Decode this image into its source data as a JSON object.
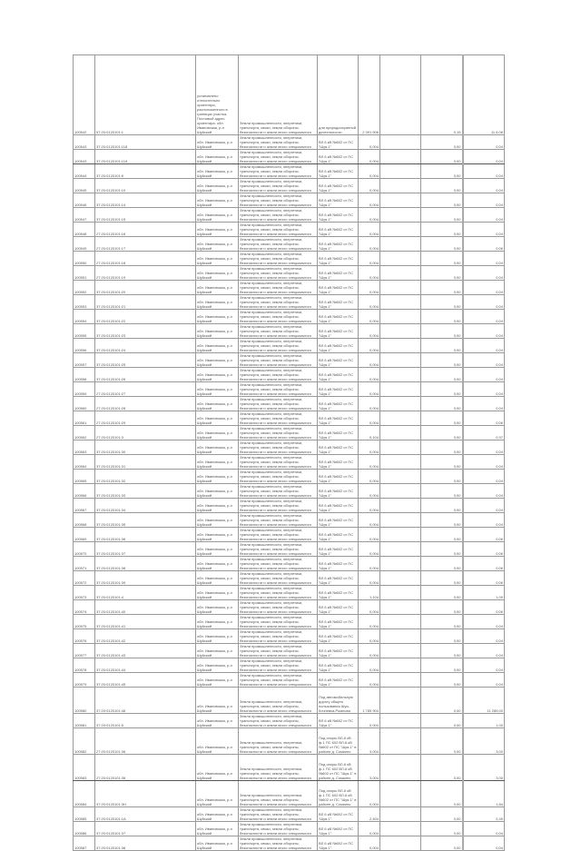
{
  "table": {
    "address": "обл. Ивановская, р-н Шуйский",
    "first_row_address": "установлено относительно ориентира, расположенного в границах участка. Почтовый адрес ориентира: обл. Ивановская, р-н Шуйский",
    "category": "Земли промышленности, энергетики, транспорта, связи, земли обороны, безопасности и земли иного специального назначения",
    "purpose_line": "ВЛ 6 кВ №602 от ПС \"Шуя-1\"",
    "purpose_nature": "для природоохранной деятельности",
    "purpose_road_a": "Под автомобильную дорогу общего пользования Шуя-Кочневка-Ржанова",
    "purpose_road_b": "Под опоры ВЛ-6 кВ ф.1 ПС 602 ВЛ-6 кВ №602 от ПС \"Шуя-1\" в районе д. Сомкино",
    "rows": [
      {
        "n": "100542",
        "cad": "57:20:0120101:1",
        "p": "nature",
        "a": "2 391 906",
        "b": "0,15",
        "c": "11 6,08",
        "first": true
      },
      {
        "n": "100543",
        "cad": "37:20:0120101:118",
        "p": "line",
        "a": "0,004",
        "b": "0,00",
        "c": "0,04"
      },
      {
        "n": "100543",
        "cad": "37:20:0120101:119",
        "p": "line",
        "a": "0,004",
        "b": "0,00",
        "c": "0,04",
        "thick": true
      },
      {
        "n": "100544",
        "cad": "37:20:0120101:9",
        "p": "line",
        "a": "0,004",
        "b": "0,00",
        "c": "0,04"
      },
      {
        "n": "100545",
        "cad": "37:20:0120101:10",
        "p": "line",
        "a": "0,004",
        "b": "0,00",
        "c": "0,04"
      },
      {
        "n": "100546",
        "cad": "37:20:0120101:14",
        "p": "line",
        "a": "0,004",
        "b": "0,00",
        "c": "0,04"
      },
      {
        "n": "100547",
        "cad": "37:20:0120101:15",
        "p": "line",
        "a": "0,004",
        "b": "0,00",
        "c": "0,04"
      },
      {
        "n": "100548",
        "cad": "27:20:0120101:16",
        "p": "line",
        "a": "0,004",
        "b": "0,00",
        "c": "0,04"
      },
      {
        "n": "100549",
        "cad": "27:20:0120101:17",
        "p": "line",
        "a": "0,004",
        "b": "0,00",
        "c": "0,06"
      },
      {
        "n": "100550",
        "cad": "27:20:0120101:18",
        "p": "line",
        "a": "0,004",
        "b": "0,00",
        "c": "0,04"
      },
      {
        "n": "100551",
        "cad": "27:20:0120101:19",
        "p": "line",
        "a": "0,004",
        "b": "0,00",
        "c": "0,04"
      },
      {
        "n": "100552",
        "cad": "37:20:0120101:20",
        "p": "line",
        "a": "0,004",
        "b": "0,00",
        "c": "0,04"
      },
      {
        "n": "100553",
        "cad": "37:20:0120101:21",
        "p": "line",
        "a": "0,004",
        "b": "0,00",
        "c": "0,04"
      },
      {
        "n": "100554",
        "cad": "37:20:0120101:22",
        "p": "line",
        "a": "0,004",
        "b": "0,00",
        "c": "0,04"
      },
      {
        "n": "100555",
        "cad": "37:20:0120101:23",
        "p": "line",
        "a": "0,004",
        "b": "0,00",
        "c": "0,04"
      },
      {
        "n": "100556",
        "cad": "37:20:0120101:24",
        "p": "line",
        "a": "0,004",
        "b": "0,00",
        "c": "0,04"
      },
      {
        "n": "100557",
        "cad": "37:20:0120101:25",
        "p": "line",
        "a": "0,004",
        "b": "0,00",
        "c": "0,04"
      },
      {
        "n": "100558",
        "cad": "37:20:0120101:26",
        "p": "line",
        "a": "0,004",
        "b": "0,00",
        "c": "0,04"
      },
      {
        "n": "100559",
        "cad": "27:20:0120101:27",
        "p": "line",
        "a": "0,004",
        "b": "0,00",
        "c": "0,04"
      },
      {
        "n": "100560",
        "cad": "27:20:0120101:28",
        "p": "line",
        "a": "0,004",
        "b": "0,00",
        "c": "0,04"
      },
      {
        "n": "100561",
        "cad": "27:20:0120101:29",
        "p": "line",
        "a": "0,004",
        "b": "0,00",
        "c": "0,06"
      },
      {
        "n": "100562",
        "cad": "27:20:0120101:3",
        "p": "line",
        "a": "0,104",
        "b": "0,00",
        "c": "0,37"
      },
      {
        "n": "100563",
        "cad": "37:20:0120101:30",
        "p": "line",
        "a": "0,004",
        "b": "0,00",
        "c": "0,04"
      },
      {
        "n": "100564",
        "cad": "37:20:0120101:31",
        "p": "line",
        "a": "0,004",
        "b": "0,00",
        "c": "0,04"
      },
      {
        "n": "100565",
        "cad": "37:20:0120101:32",
        "p": "line",
        "a": "0,004",
        "b": "0,00",
        "c": "0,04"
      },
      {
        "n": "100566",
        "cad": "37:20:0120101:33",
        "p": "line",
        "a": "0,004",
        "b": "0,00",
        "c": "0,04"
      },
      {
        "n": "100567",
        "cad": "37:20:0120101:34",
        "p": "line",
        "a": "0,004",
        "b": "0,00",
        "c": "0,04"
      },
      {
        "n": "100568",
        "cad": "37:20:0120101:35",
        "p": "line",
        "a": "0,004",
        "b": "0,00",
        "c": "0,04"
      },
      {
        "n": "100569",
        "cad": "37:20:0120101:36",
        "p": "line",
        "a": "0,004",
        "b": "0,00",
        "c": "0,06"
      },
      {
        "n": "100570",
        "cad": "37:20:0120101:37",
        "p": "line",
        "a": "0,004",
        "b": "0,00",
        "c": "0,06"
      },
      {
        "n": "100571",
        "cad": "37:20:0120101:38",
        "p": "line",
        "a": "0,004",
        "b": "0,00",
        "c": "0,06"
      },
      {
        "n": "100572",
        "cad": "37:20:0120101:39",
        "p": "line",
        "a": "0,004",
        "b": "0,00",
        "c": "0,06"
      },
      {
        "n": "100573",
        "cad": "37:20:0120101:4",
        "p": "line",
        "a": "1,104",
        "b": "0,00",
        "c": "1,09"
      },
      {
        "n": "100574",
        "cad": "37:20:0120101:40",
        "p": "line",
        "a": "0,004",
        "b": "0,00",
        "c": "0,06"
      },
      {
        "n": "100575",
        "cad": "37:20:0120101:41",
        "p": "line",
        "a": "0,004",
        "b": "0,00",
        "c": "0,04"
      },
      {
        "n": "100576",
        "cad": "37:20:0120101:42",
        "p": "line",
        "a": "0,004",
        "b": "0,00",
        "c": "0,04"
      },
      {
        "n": "100577",
        "cad": "37:20:0120101:43",
        "p": "line",
        "a": "0,004",
        "b": "0,00",
        "c": "0,04"
      },
      {
        "n": "100578",
        "cad": "37:20:0120101:44",
        "p": "line",
        "a": "0,004",
        "b": "0,00",
        "c": "0,04"
      },
      {
        "n": "100579",
        "cad": "37:20:0120101:45",
        "p": "line",
        "a": "0,004",
        "b": "0,00",
        "c": "0,04"
      },
      {
        "n": "100580",
        "cad": "37:20:0120101:46",
        "p": "road_a",
        "a": "1 785 904",
        "b": "0,00",
        "c": "11 285,00",
        "tall": true
      },
      {
        "n": "100581",
        "cad": "37:20:0120101:5",
        "p": "line",
        "a": "0,004",
        "b": "0,00",
        "c": "1,00"
      },
      {
        "n": "100582",
        "cad": "27:20:0120101:36",
        "p": "road_b",
        "a": "3,004",
        "b": "0,00",
        "c": "3,00",
        "tall": true
      },
      {
        "n": "100583",
        "cad": "27:20:0120101:38",
        "p": "road_b",
        "a": "3,004",
        "b": "0,00",
        "c": "3,00",
        "tall": true,
        "thick": true
      },
      {
        "n": "100584",
        "cad": "37:20:0120101:3H",
        "p": "road_b",
        "a": "0,004",
        "b": "0,00",
        "c": "1,84",
        "tall": true
      },
      {
        "n": "100585",
        "cad": "37:20:0120101:1A",
        "p": "line",
        "a": "2,404",
        "b": "0,00",
        "c": "2,45"
      },
      {
        "n": "100586",
        "cad": "37:20:0120101:37",
        "p": "line",
        "a": "0,004",
        "b": "0,00",
        "c": "0,04"
      },
      {
        "n": "100587",
        "cad": "37:20:0120101:38",
        "p": "line",
        "a": "0,004",
        "b": "0,00",
        "c": "0,04"
      }
    ]
  }
}
